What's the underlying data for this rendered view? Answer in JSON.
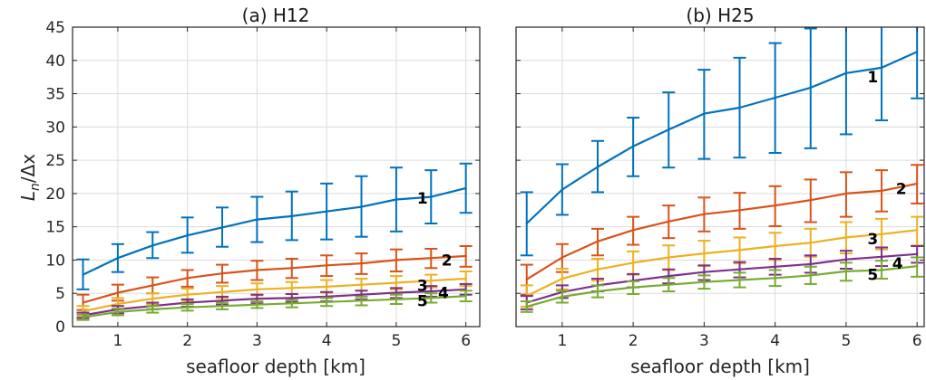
{
  "chart_data": [
    {
      "type": "line",
      "title": "(a) H12",
      "xlabel": "seafloor depth [km]",
      "ylabel": "L",
      "ylabel_sub": "n",
      "ylabel_rest": "/Δx",
      "xlim": [
        0.35,
        6.2
      ],
      "ylim": [
        0,
        45
      ],
      "xticks": [
        1,
        2,
        3,
        4,
        5,
        6
      ],
      "yticks": [
        0,
        5,
        10,
        15,
        20,
        25,
        30,
        35,
        40,
        45
      ],
      "grid": true,
      "x": [
        0.5,
        1,
        1.5,
        2,
        2.5,
        3,
        3.5,
        4,
        4.5,
        5,
        5.5,
        6
      ],
      "series": [
        {
          "name": "1",
          "label_at": [
            5.3,
            19.3
          ],
          "color": "#0072BD",
          "values": [
            7.8,
            10.3,
            12.2,
            13.7,
            14.9,
            16.1,
            16.6,
            17.3,
            18.0,
            19.1,
            19.5,
            20.8
          ],
          "lower": [
            5.6,
            8.2,
            10.3,
            11.1,
            12.0,
            12.7,
            13.0,
            13.1,
            13.5,
            14.3,
            15.5,
            17.1
          ],
          "upper": [
            10.1,
            12.4,
            14.2,
            16.4,
            17.9,
            19.5,
            20.3,
            21.5,
            22.6,
            23.9,
            23.5,
            24.5
          ]
        },
        {
          "name": "2",
          "label_at": [
            5.65,
            10.0
          ],
          "color": "#D95319",
          "values": [
            3.6,
            5.1,
            6.2,
            7.3,
            8.0,
            8.5,
            8.8,
            9.2,
            9.5,
            10.0,
            10.3,
            10.6
          ],
          "lower": [
            2.5,
            3.9,
            5.0,
            6.0,
            6.6,
            7.0,
            7.3,
            7.6,
            7.9,
            8.3,
            8.8,
            9.0
          ],
          "upper": [
            4.8,
            6.3,
            7.4,
            8.5,
            9.3,
            9.9,
            10.2,
            10.7,
            11.0,
            11.6,
            11.7,
            12.1
          ]
        },
        {
          "name": "3",
          "label_at": [
            5.3,
            6.2
          ],
          "color": "#EDB120",
          "values": [
            2.3,
            3.4,
            4.2,
            4.8,
            5.2,
            5.6,
            5.8,
            6.0,
            6.3,
            6.6,
            6.9,
            7.2
          ],
          "lower": [
            1.5,
            2.6,
            3.4,
            3.9,
            4.3,
            4.7,
            4.9,
            5.1,
            5.4,
            5.6,
            5.9,
            6.1
          ],
          "upper": [
            3.1,
            4.3,
            5.0,
            5.7,
            6.1,
            6.5,
            6.7,
            7.0,
            7.2,
            7.6,
            7.8,
            8.3
          ]
        },
        {
          "name": "4",
          "label_at": [
            5.6,
            5.1
          ],
          "color": "#7E2F8E",
          "values": [
            1.7,
            2.6,
            3.1,
            3.6,
            3.9,
            4.2,
            4.3,
            4.5,
            4.8,
            5.1,
            5.3,
            5.6
          ],
          "lower": [
            1.3,
            2.0,
            2.6,
            3.0,
            3.3,
            3.5,
            3.7,
            3.8,
            4.1,
            4.3,
            4.5,
            4.8
          ],
          "upper": [
            2.1,
            3.1,
            3.6,
            4.1,
            4.5,
            4.8,
            4.9,
            5.2,
            5.4,
            5.8,
            6.1,
            6.4
          ]
        },
        {
          "name": "5",
          "label_at": [
            5.3,
            3.9
          ],
          "color": "#77AC30",
          "values": [
            1.4,
            2.2,
            2.6,
            2.9,
            3.1,
            3.3,
            3.5,
            3.7,
            3.9,
            4.1,
            4.3,
            4.6
          ],
          "lower": [
            1.0,
            1.7,
            2.1,
            2.4,
            2.6,
            2.8,
            2.9,
            3.1,
            3.2,
            3.4,
            3.6,
            3.8
          ],
          "upper": [
            1.8,
            2.7,
            3.1,
            3.4,
            3.6,
            3.8,
            4.0,
            4.3,
            4.5,
            4.8,
            5.0,
            5.4
          ]
        }
      ]
    },
    {
      "type": "line",
      "title": "(b) H25",
      "xlabel": "seafloor depth [km]",
      "ylabel": "",
      "xlim": [
        0.35,
        6.1
      ],
      "ylim": [
        0,
        45
      ],
      "xticks": [
        1,
        2,
        3,
        4,
        5,
        6
      ],
      "yticks": [
        0,
        5,
        10,
        15,
        20,
        25,
        30,
        35,
        40,
        45
      ],
      "grid": true,
      "x": [
        0.5,
        1,
        1.5,
        2,
        2.5,
        3,
        3.5,
        4,
        4.5,
        5,
        5.5,
        6
      ],
      "series": [
        {
          "name": "1",
          "label_at": [
            5.3,
            37.5
          ],
          "color": "#0072BD",
          "values": [
            15.5,
            20.6,
            24.0,
            27.1,
            29.6,
            32.0,
            32.9,
            34.4,
            35.9,
            38.1,
            38.9,
            41.3
          ],
          "lower": [
            10.7,
            16.8,
            20.2,
            22.6,
            23.9,
            25.2,
            25.4,
            26.1,
            26.8,
            28.9,
            31.0,
            34.3
          ],
          "upper": [
            20.2,
            24.4,
            27.9,
            31.4,
            35.2,
            38.6,
            40.4,
            42.6,
            44.8,
            45.5,
            46.5,
            48.5
          ]
        },
        {
          "name": "2",
          "label_at": [
            5.7,
            20.7
          ],
          "color": "#D95319",
          "values": [
            7.1,
            10.4,
            12.8,
            14.5,
            15.8,
            16.9,
            17.5,
            18.2,
            19.0,
            20.0,
            20.4,
            21.5
          ],
          "lower": [
            4.8,
            8.2,
            10.7,
            12.3,
            13.3,
            14.3,
            14.7,
            15.1,
            15.7,
            16.5,
            17.3,
            18.5
          ],
          "upper": [
            9.3,
            12.4,
            14.7,
            16.5,
            18.2,
            19.4,
            20.1,
            21.1,
            22.1,
            23.2,
            23.5,
            24.3
          ]
        },
        {
          "name": "3",
          "label_at": [
            5.3,
            13.2
          ],
          "color": "#EDB120",
          "values": [
            4.6,
            7.2,
            8.6,
            9.6,
            10.4,
            11.0,
            11.5,
            12.1,
            12.6,
            13.4,
            13.9,
            14.5
          ],
          "lower": [
            3.0,
            5.6,
            6.9,
            7.8,
            8.5,
            9.1,
            9.5,
            10.0,
            10.5,
            11.0,
            11.6,
            12.2
          ],
          "upper": [
            6.2,
            8.7,
            10.2,
            11.3,
            12.2,
            12.9,
            13.4,
            14.1,
            14.7,
            15.7,
            16.2,
            16.5
          ]
        },
        {
          "name": "4",
          "label_at": [
            5.65,
            9.5
          ],
          "color": "#7E2F8E",
          "values": [
            3.6,
            5.2,
            6.2,
            6.9,
            7.6,
            8.2,
            8.6,
            9.0,
            9.4,
            10.1,
            10.5,
            10.9
          ],
          "lower": [
            2.6,
            4.3,
            5.3,
            5.9,
            6.5,
            7.0,
            7.4,
            7.8,
            8.1,
            8.7,
            9.1,
            9.6
          ],
          "upper": [
            4.6,
            6.2,
            7.2,
            7.9,
            8.6,
            9.2,
            9.7,
            10.2,
            10.7,
            11.4,
            11.9,
            12.1
          ]
        },
        {
          "name": "5",
          "label_at": [
            5.3,
            7.8
          ],
          "color": "#77AC30",
          "values": [
            3.0,
            4.5,
            5.3,
            5.9,
            6.3,
            6.7,
            7.0,
            7.3,
            7.7,
            8.3,
            8.5,
            9.1
          ],
          "lower": [
            2.2,
            3.6,
            4.4,
            4.9,
            5.3,
            5.7,
            5.9,
            6.1,
            6.4,
            6.9,
            7.2,
            7.5
          ],
          "upper": [
            3.8,
            5.4,
            6.2,
            6.8,
            7.3,
            7.7,
            8.1,
            8.5,
            9.0,
            9.6,
            9.9,
            10.4
          ]
        }
      ]
    }
  ]
}
